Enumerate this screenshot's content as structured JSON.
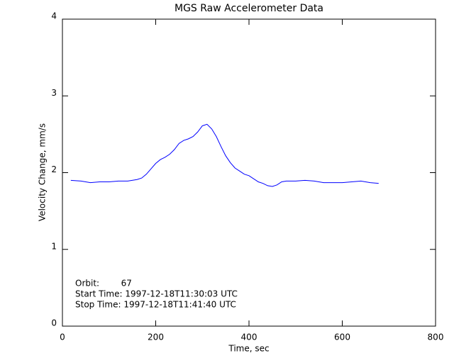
{
  "chart_data": {
    "type": "line",
    "title": "MGS Raw Accelerometer Data",
    "x_label": "Time, sec",
    "y_label": "Velocity Change, mm/s",
    "annotations": [
      "Orbit:        67",
      "Start Time: 1997-12-18T11:30:03 UTC",
      "Stop Time: 1997-12-18T11:41:40 UTC"
    ],
    "x": [
      18,
      40,
      60,
      80,
      100,
      120,
      140,
      160,
      170,
      180,
      190,
      200,
      210,
      220,
      230,
      240,
      250,
      260,
      270,
      280,
      290,
      300,
      310,
      320,
      330,
      340,
      350,
      360,
      370,
      380,
      390,
      400,
      410,
      420,
      430,
      440,
      450,
      460,
      470,
      480,
      500,
      520,
      540,
      560,
      580,
      600,
      620,
      640,
      660,
      678
    ],
    "series": [
      {
        "color": "#0000ff",
        "values": [
          1.9,
          1.89,
          1.87,
          1.88,
          1.88,
          1.89,
          1.89,
          1.91,
          1.93,
          1.98,
          2.05,
          2.12,
          2.17,
          2.2,
          2.24,
          2.3,
          2.38,
          2.42,
          2.44,
          2.47,
          2.53,
          2.61,
          2.63,
          2.57,
          2.47,
          2.34,
          2.22,
          2.13,
          2.06,
          2.02,
          1.98,
          1.96,
          1.92,
          1.88,
          1.86,
          1.83,
          1.82,
          1.84,
          1.88,
          1.89,
          1.89,
          1.9,
          1.89,
          1.87,
          1.87,
          1.87,
          1.88,
          1.89,
          1.87,
          1.86
        ]
      }
    ],
    "xlim": [
      0,
      800
    ],
    "xticks": [
      0,
      200,
      400,
      600,
      800
    ],
    "ylim": [
      0,
      4
    ],
    "yticks": [
      0,
      1,
      2,
      3,
      4
    ],
    "grid": false
  }
}
